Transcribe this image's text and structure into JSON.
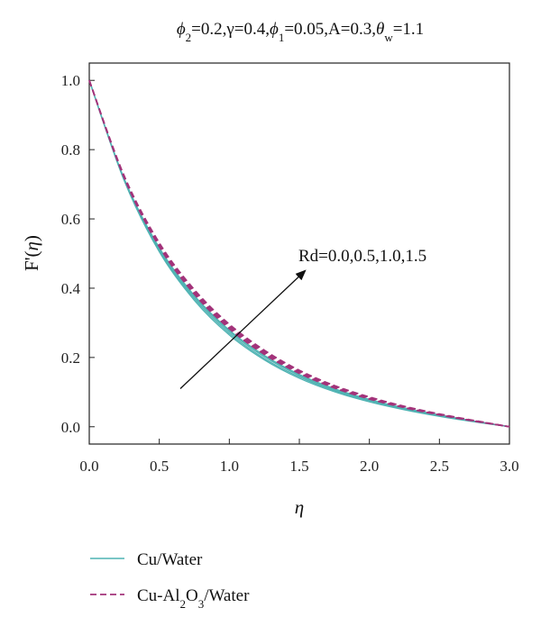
{
  "chart_data": {
    "type": "line",
    "title": "ϕ2=0.2,γ=0.4,ϕ1=0.05,A=0.3,θw=1.1",
    "title_parts": {
      "phi": "ϕ",
      "sub2": "2",
      "gamma_part": "=0.2,γ=0.4,",
      "sub1": "1",
      "A_part": "=0.05,A=0.3,",
      "theta": "θ",
      "subw": "w",
      "end": "=1.1"
    },
    "xlabel": "η",
    "ylabel": "F'(η)",
    "ylabel_parts": {
      "pre": "F'(",
      "eta": "η",
      "post": ")"
    },
    "xlim": [
      0,
      3
    ],
    "ylim": [
      -0.05,
      1.05
    ],
    "xticks": [
      "0.0",
      "0.5",
      "1.0",
      "1.5",
      "2.0",
      "2.5",
      "3.0"
    ],
    "yticks": [
      "0.0",
      "0.2",
      "0.4",
      "0.6",
      "0.8",
      "1.0"
    ],
    "grid": false,
    "annotation": {
      "text": "Rd=0.0,0.5,1.0,1.5",
      "arrow_from": [
        0.65,
        0.11
      ],
      "arrow_to": [
        1.54,
        0.45
      ]
    },
    "legend": {
      "placement": "bottom",
      "entries": [
        {
          "label": "Cu/Water",
          "color": "#4fb3b3",
          "dash": "solid"
        },
        {
          "label_pre": "Cu-Al",
          "sub_a": "2",
          "label_mid": "O",
          "sub_b": "3",
          "label_post": "/Water",
          "color": "#a3337a",
          "dash": "dashed"
        }
      ]
    },
    "series": [
      {
        "group": "Cu/Water",
        "Rd": "0.0",
        "x": [
          0,
          0.25,
          0.5,
          0.75,
          1.0,
          1.25,
          1.5,
          1.75,
          2.0,
          2.25,
          2.5,
          2.75,
          3.0
        ],
        "y": [
          1.0,
          0.71,
          0.505,
          0.365,
          0.265,
          0.193,
          0.14,
          0.101,
          0.072,
          0.049,
          0.03,
          0.014,
          0.0
        ]
      },
      {
        "group": "Cu/Water",
        "Rd": "0.5",
        "x": [
          0,
          0.25,
          0.5,
          0.75,
          1.0,
          1.25,
          1.5,
          1.75,
          2.0,
          2.25,
          2.5,
          2.75,
          3.0
        ],
        "y": [
          1.0,
          0.712,
          0.509,
          0.37,
          0.27,
          0.197,
          0.144,
          0.104,
          0.075,
          0.051,
          0.031,
          0.015,
          0.0
        ]
      },
      {
        "group": "Cu/Water",
        "Rd": "1.0",
        "x": [
          0,
          0.25,
          0.5,
          0.75,
          1.0,
          1.25,
          1.5,
          1.75,
          2.0,
          2.25,
          2.5,
          2.75,
          3.0
        ],
        "y": [
          1.0,
          0.714,
          0.513,
          0.375,
          0.275,
          0.202,
          0.148,
          0.107,
          0.077,
          0.053,
          0.033,
          0.016,
          0.0
        ]
      },
      {
        "group": "Cu/Water",
        "Rd": "1.5",
        "x": [
          0,
          0.25,
          0.5,
          0.75,
          1.0,
          1.25,
          1.5,
          1.75,
          2.0,
          2.25,
          2.5,
          2.75,
          3.0
        ],
        "y": [
          1.0,
          0.716,
          0.517,
          0.379,
          0.279,
          0.206,
          0.151,
          0.11,
          0.079,
          0.054,
          0.034,
          0.016,
          0.0
        ]
      },
      {
        "group": "Cu-Al2O3/Water",
        "Rd": "0.0",
        "x": [
          0,
          0.25,
          0.5,
          0.75,
          1.0,
          1.25,
          1.5,
          1.75,
          2.0,
          2.25,
          2.5,
          2.75,
          3.0
        ],
        "y": [
          1.0,
          0.718,
          0.52,
          0.383,
          0.283,
          0.209,
          0.154,
          0.112,
          0.08,
          0.055,
          0.034,
          0.016,
          0.0
        ]
      },
      {
        "group": "Cu-Al2O3/Water",
        "Rd": "0.5",
        "x": [
          0,
          0.25,
          0.5,
          0.75,
          1.0,
          1.25,
          1.5,
          1.75,
          2.0,
          2.25,
          2.5,
          2.75,
          3.0
        ],
        "y": [
          1.0,
          0.72,
          0.524,
          0.388,
          0.288,
          0.213,
          0.157,
          0.114,
          0.082,
          0.056,
          0.035,
          0.017,
          0.0
        ]
      },
      {
        "group": "Cu-Al2O3/Water",
        "Rd": "1.0",
        "x": [
          0,
          0.25,
          0.5,
          0.75,
          1.0,
          1.25,
          1.5,
          1.75,
          2.0,
          2.25,
          2.5,
          2.75,
          3.0
        ],
        "y": [
          1.0,
          0.722,
          0.528,
          0.392,
          0.292,
          0.217,
          0.16,
          0.117,
          0.084,
          0.058,
          0.036,
          0.017,
          0.0
        ]
      },
      {
        "group": "Cu-Al2O3/Water",
        "Rd": "1.5",
        "x": [
          0,
          0.25,
          0.5,
          0.75,
          1.0,
          1.25,
          1.5,
          1.75,
          2.0,
          2.25,
          2.5,
          2.75,
          3.0
        ],
        "y": [
          1.0,
          0.724,
          0.531,
          0.396,
          0.296,
          0.221,
          0.163,
          0.119,
          0.086,
          0.059,
          0.037,
          0.018,
          0.0
        ]
      }
    ]
  }
}
